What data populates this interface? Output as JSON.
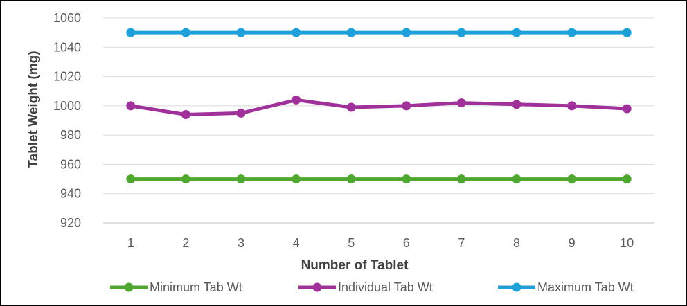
{
  "chart_data": {
    "type": "line",
    "title": "",
    "xlabel": "Number of Tablet",
    "ylabel": "Tablet Weight (mg)",
    "categories": [
      "1",
      "2",
      "3",
      "4",
      "5",
      "6",
      "7",
      "8",
      "9",
      "10"
    ],
    "ylim": [
      920,
      1060
    ],
    "yticks": [
      "920",
      "940",
      "960",
      "980",
      "1000",
      "1020",
      "1040",
      "1060"
    ],
    "grid": true,
    "legend_position": "bottom",
    "series": [
      {
        "name": "Minimum Tab Wt",
        "color": "#4ea72e",
        "values": [
          950,
          950,
          950,
          950,
          950,
          950,
          950,
          950,
          950,
          950
        ]
      },
      {
        "name": "Individual Tab Wt",
        "color": "#a0309a",
        "values": [
          1000,
          994,
          995,
          1004,
          999,
          1000,
          1002,
          1001,
          1000,
          998
        ]
      },
      {
        "name": "Maximum Tab Wt",
        "color": "#1fa0d8",
        "values": [
          1050,
          1050,
          1050,
          1050,
          1050,
          1050,
          1050,
          1050,
          1050,
          1050
        ]
      }
    ]
  }
}
